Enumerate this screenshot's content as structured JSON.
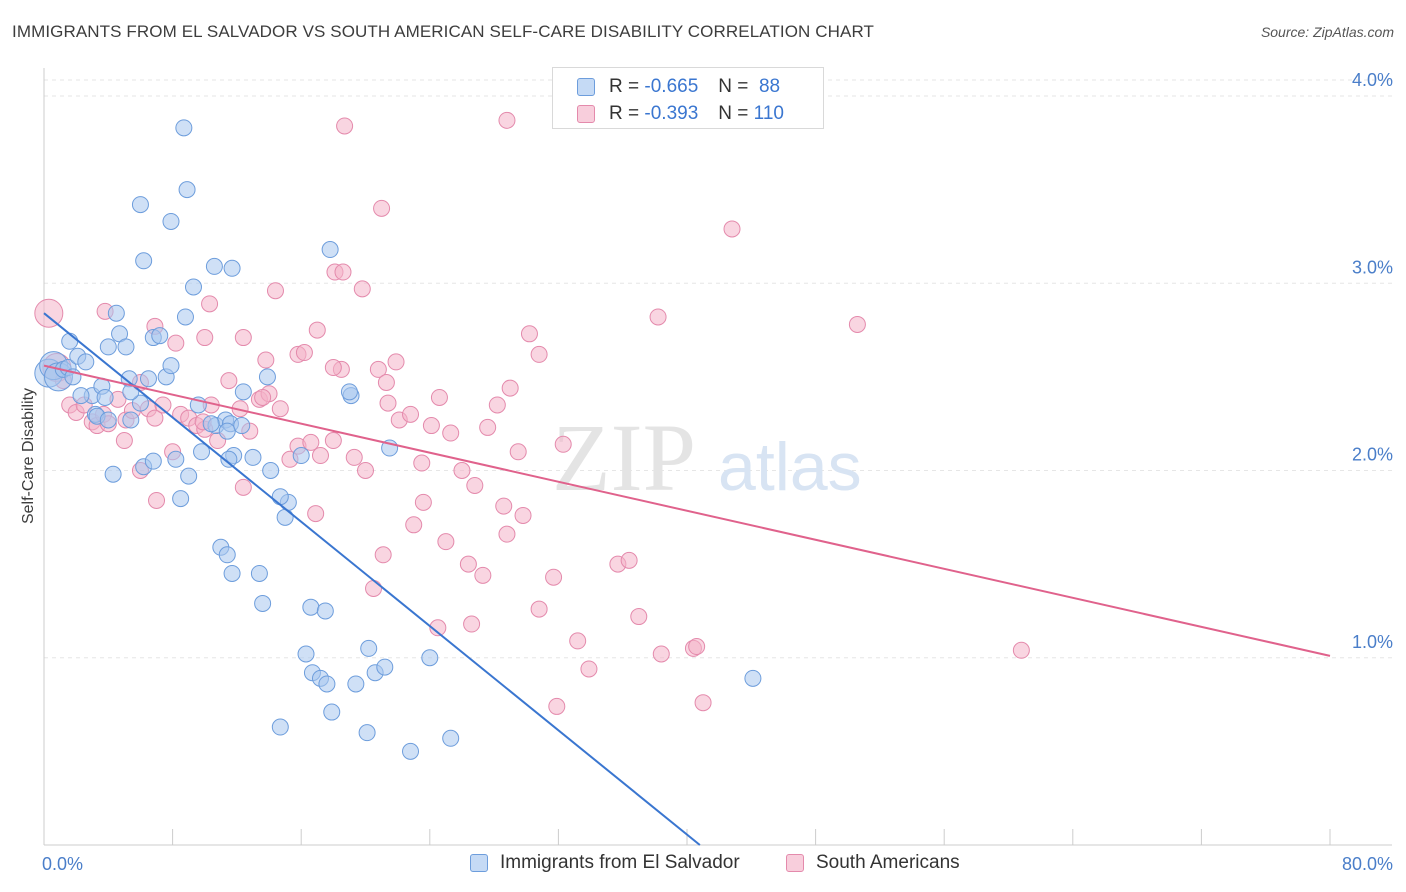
{
  "title": "IMMIGRANTS FROM EL SALVADOR VS SOUTH AMERICAN SELF-CARE DISABILITY CORRELATION CHART",
  "source": "Source: ZipAtlas.com",
  "watermark": {
    "zip": "ZIP",
    "atlas": "atlas"
  },
  "colors": {
    "blue": "#3a76d0",
    "blue_fill": "#a8c6ee",
    "pink": "#e0628c",
    "pink_fill": "#f4b3c9",
    "tick": "#4a7ec9"
  },
  "legend": {
    "rows": [
      {
        "r_label": "R =",
        "r_value": "-0.665",
        "n_label": "N =",
        "n_value": "88"
      },
      {
        "r_label": "R =",
        "r_value": "-0.393",
        "n_label": "N =",
        "n_value": "110"
      }
    ]
  },
  "chart_data": {
    "type": "scatter",
    "ylabel": "Self-Care Disability",
    "xlim": [
      0,
      80
    ],
    "ylim": [
      0,
      4.0
    ],
    "x_tick_labels": [
      "0.0%",
      "80.0%"
    ],
    "y_ticks": [
      {
        "value": 1.0,
        "label": "1.0%"
      },
      {
        "value": 2.0,
        "label": "2.0%"
      },
      {
        "value": 3.0,
        "label": "3.0%"
      },
      {
        "value": 4.0,
        "label": "4.0%"
      }
    ],
    "grid": true,
    "series": [
      {
        "name": "Immigrants from El Salvador",
        "color": "blue",
        "trend": {
          "x0": 0.0,
          "y0": 2.84,
          "x1": 40.8,
          "y1": 0.0
        },
        "points": [
          [
            0.3,
            2.52
          ],
          [
            0.6,
            2.56
          ],
          [
            0.9,
            2.5
          ],
          [
            1.2,
            2.54
          ],
          [
            1.5,
            2.55
          ],
          [
            1.8,
            2.5
          ],
          [
            1.6,
            2.69
          ],
          [
            2.1,
            2.61
          ],
          [
            2.6,
            2.58
          ],
          [
            3.0,
            2.4
          ],
          [
            3.6,
            2.45
          ],
          [
            3.8,
            2.39
          ],
          [
            4.0,
            2.66
          ],
          [
            4.5,
            2.84
          ],
          [
            4.7,
            2.73
          ],
          [
            5.1,
            2.66
          ],
          [
            5.3,
            2.49
          ],
          [
            5.4,
            2.27
          ],
          [
            6.5,
            2.49
          ],
          [
            6.8,
            2.71
          ],
          [
            7.2,
            2.72
          ],
          [
            7.6,
            2.5
          ],
          [
            7.9,
            2.56
          ],
          [
            8.8,
            2.82
          ],
          [
            9.3,
            2.98
          ],
          [
            9.8,
            2.1
          ],
          [
            10.7,
            2.24
          ],
          [
            11.3,
            2.27
          ],
          [
            11.6,
            2.25
          ],
          [
            12.4,
            2.42
          ],
          [
            13.0,
            2.07
          ],
          [
            3.2,
            2.3
          ],
          [
            3.3,
            2.29
          ],
          [
            4.3,
            1.98
          ],
          [
            6.2,
            2.02
          ],
          [
            6.0,
            2.36
          ],
          [
            8.5,
            1.85
          ],
          [
            8.2,
            2.06
          ],
          [
            9.6,
            2.35
          ],
          [
            9.0,
            1.97
          ],
          [
            10.4,
            2.25
          ],
          [
            11.4,
            2.21
          ],
          [
            11.0,
            1.59
          ],
          [
            11.4,
            1.55
          ],
          [
            11.7,
            1.45
          ],
          [
            13.4,
            1.45
          ],
          [
            13.6,
            1.29
          ],
          [
            13.9,
            2.5
          ],
          [
            15.0,
            1.75
          ],
          [
            15.2,
            1.83
          ],
          [
            16.6,
            1.27
          ],
          [
            17.5,
            1.25
          ],
          [
            16.3,
            1.02
          ],
          [
            16.7,
            0.92
          ],
          [
            17.2,
            0.89
          ],
          [
            17.6,
            0.86
          ],
          [
            17.9,
            0.71
          ],
          [
            19.4,
            0.86
          ],
          [
            20.2,
            1.05
          ],
          [
            20.6,
            0.92
          ],
          [
            20.1,
            0.6
          ],
          [
            19.1,
            2.4
          ],
          [
            19.0,
            2.42
          ],
          [
            21.2,
            0.95
          ],
          [
            22.8,
            0.5
          ],
          [
            24.0,
            1.0
          ],
          [
            25.3,
            0.57
          ],
          [
            16.0,
            2.08
          ],
          [
            17.8,
            3.18
          ],
          [
            21.5,
            2.12
          ],
          [
            12.3,
            2.24
          ],
          [
            11.8,
            2.08
          ],
          [
            11.5,
            2.06
          ],
          [
            6.0,
            3.42
          ],
          [
            7.9,
            3.33
          ],
          [
            8.9,
            3.5
          ],
          [
            8.7,
            3.83
          ],
          [
            6.2,
            3.12
          ],
          [
            10.6,
            3.09
          ],
          [
            11.7,
            3.08
          ],
          [
            14.1,
            2.0
          ],
          [
            14.7,
            1.86
          ],
          [
            4.0,
            2.27
          ],
          [
            5.4,
            2.42
          ],
          [
            14.7,
            0.63
          ],
          [
            44.1,
            0.89
          ],
          [
            2.3,
            2.4
          ],
          [
            6.8,
            2.05
          ]
        ]
      },
      {
        "name": "South Americans",
        "color": "pink",
        "trend": {
          "x0": 0.0,
          "y0": 2.56,
          "x1": 80.0,
          "y1": 1.01
        },
        "points": [
          [
            0.3,
            2.84
          ],
          [
            0.8,
            2.55
          ],
          [
            1.2,
            2.48
          ],
          [
            1.6,
            2.35
          ],
          [
            2.0,
            2.31
          ],
          [
            2.5,
            2.35
          ],
          [
            3.0,
            2.26
          ],
          [
            3.3,
            2.24
          ],
          [
            3.7,
            2.3
          ],
          [
            4.0,
            2.25
          ],
          [
            4.6,
            2.38
          ],
          [
            5.1,
            2.27
          ],
          [
            5.5,
            2.32
          ],
          [
            6.0,
            2.47
          ],
          [
            6.5,
            2.33
          ],
          [
            6.9,
            2.28
          ],
          [
            7.4,
            2.35
          ],
          [
            8.0,
            2.1
          ],
          [
            8.5,
            2.3
          ],
          [
            9.0,
            2.28
          ],
          [
            9.5,
            2.24
          ],
          [
            10.0,
            2.22
          ],
          [
            10.4,
            2.35
          ],
          [
            10.8,
            2.16
          ],
          [
            11.5,
            2.48
          ],
          [
            12.2,
            2.33
          ],
          [
            12.8,
            2.21
          ],
          [
            13.4,
            2.38
          ],
          [
            14.0,
            2.41
          ],
          [
            14.7,
            2.33
          ],
          [
            15.3,
            2.06
          ],
          [
            15.8,
            2.13
          ],
          [
            16.6,
            2.15
          ],
          [
            17.2,
            2.08
          ],
          [
            18.0,
            2.16
          ],
          [
            18.5,
            2.54
          ],
          [
            19.3,
            2.07
          ],
          [
            20.0,
            2.0
          ],
          [
            20.8,
            2.54
          ],
          [
            21.4,
            2.36
          ],
          [
            22.1,
            2.27
          ],
          [
            22.8,
            2.3
          ],
          [
            23.5,
            2.04
          ],
          [
            24.1,
            2.24
          ],
          [
            24.6,
            2.39
          ],
          [
            25.3,
            2.2
          ],
          [
            26.0,
            2.0
          ],
          [
            26.8,
            1.92
          ],
          [
            27.6,
            2.23
          ],
          [
            28.2,
            2.35
          ],
          [
            29.0,
            2.44
          ],
          [
            29.5,
            2.1
          ],
          [
            30.2,
            2.73
          ],
          [
            30.8,
            2.62
          ],
          [
            31.7,
            1.43
          ],
          [
            32.3,
            2.14
          ],
          [
            3.8,
            2.85
          ],
          [
            6.9,
            2.77
          ],
          [
            8.2,
            2.68
          ],
          [
            10.0,
            2.71
          ],
          [
            12.4,
            2.71
          ],
          [
            13.8,
            2.59
          ],
          [
            14.4,
            2.96
          ],
          [
            15.8,
            2.62
          ],
          [
            16.2,
            2.63
          ],
          [
            18.0,
            2.55
          ],
          [
            17.0,
            2.75
          ],
          [
            18.1,
            3.06
          ],
          [
            18.6,
            3.06
          ],
          [
            19.8,
            2.97
          ],
          [
            21.0,
            3.4
          ],
          [
            18.7,
            3.84
          ],
          [
            28.8,
            3.87
          ],
          [
            21.3,
            2.47
          ],
          [
            21.9,
            2.58
          ],
          [
            23.0,
            1.71
          ],
          [
            23.6,
            1.83
          ],
          [
            25.0,
            1.62
          ],
          [
            26.4,
            1.5
          ],
          [
            27.3,
            1.44
          ],
          [
            28.8,
            1.66
          ],
          [
            29.8,
            1.76
          ],
          [
            28.6,
            1.81
          ],
          [
            30.8,
            1.26
          ],
          [
            33.2,
            1.09
          ],
          [
            33.9,
            0.94
          ],
          [
            31.9,
            0.74
          ],
          [
            35.7,
            1.5
          ],
          [
            36.4,
            1.52
          ],
          [
            37.0,
            1.22
          ],
          [
            38.4,
            1.02
          ],
          [
            40.4,
            1.05
          ],
          [
            40.6,
            1.06
          ],
          [
            41.0,
            0.76
          ],
          [
            42.8,
            3.29
          ],
          [
            38.2,
            2.82
          ],
          [
            50.6,
            2.78
          ],
          [
            60.8,
            1.04
          ],
          [
            26.6,
            1.18
          ],
          [
            16.9,
            1.77
          ],
          [
            20.5,
            1.37
          ],
          [
            24.5,
            1.16
          ],
          [
            21.1,
            1.55
          ],
          [
            13.6,
            2.39
          ],
          [
            10.3,
            2.89
          ],
          [
            12.4,
            1.91
          ],
          [
            9.9,
            2.26
          ],
          [
            7.0,
            1.84
          ],
          [
            6.0,
            2.0
          ],
          [
            5.0,
            2.16
          ]
        ]
      }
    ]
  }
}
